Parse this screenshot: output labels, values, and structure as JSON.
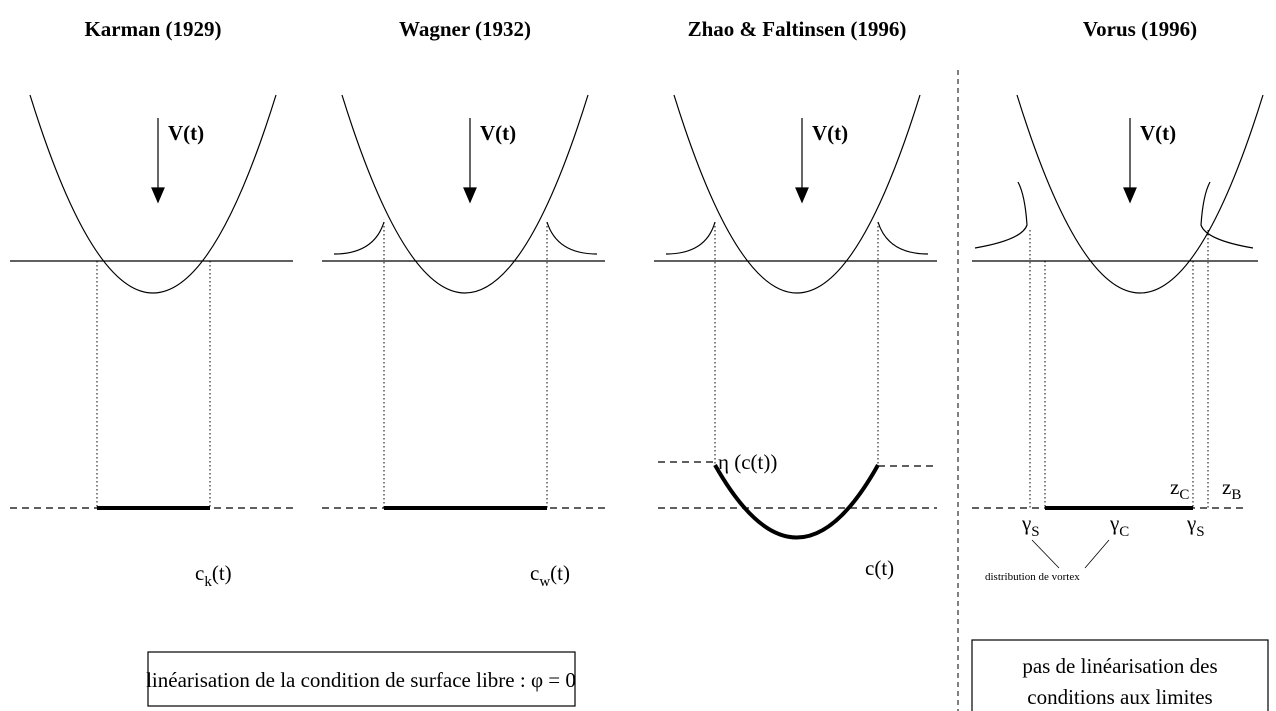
{
  "panels": [
    {
      "title": "Karman (1929)",
      "velocity": "V(t)",
      "label": {
        "base": "c",
        "sub": "k",
        "tail": "(t)"
      }
    },
    {
      "title": "Wagner (1932)",
      "velocity": "V(t)",
      "label": {
        "base": "c",
        "sub": "w",
        "tail": "(t)"
      }
    },
    {
      "title": "Zhao & Faltinsen (1996)",
      "velocity": "V(t)",
      "label": "c(t)",
      "elevation": "η (c(t))"
    },
    {
      "title": "Vorus (1996)",
      "velocity": "V(t)",
      "z_c": {
        "base": "z",
        "sub": "C"
      },
      "z_b": {
        "base": "z",
        "sub": "B"
      },
      "gammas": [
        {
          "base": "γ",
          "sub": "S"
        },
        {
          "base": "γ",
          "sub": "C"
        },
        {
          "base": "γ",
          "sub": "S"
        }
      ],
      "note": "distribution de vortex"
    }
  ],
  "boxes": [
    {
      "lines": [
        "linéarisation de la condition de surface libre :  φ = 0"
      ]
    },
    {
      "lines": [
        "pas de linéarisation des",
        "conditions aux limites"
      ]
    }
  ]
}
